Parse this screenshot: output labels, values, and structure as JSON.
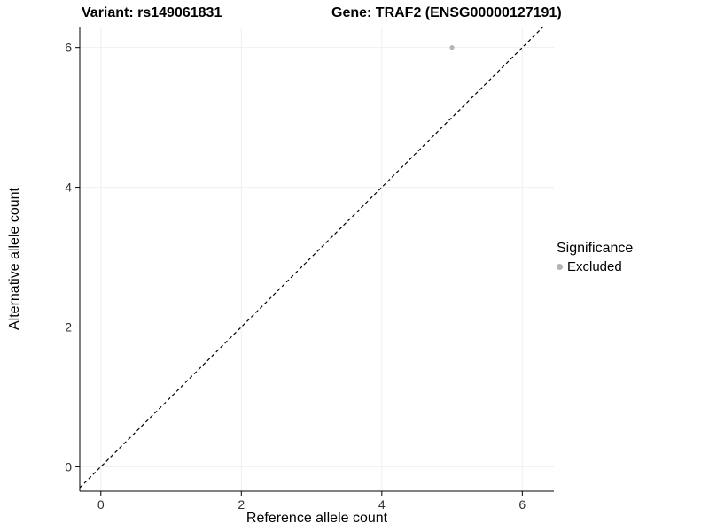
{
  "titles": {
    "left": "Variant: rs149061831",
    "right": "Gene: TRAF2 (ENSG00000127191)"
  },
  "axes": {
    "x_label": "Reference allele count",
    "y_label": "Alternative allele count"
  },
  "legend": {
    "title": "Significance",
    "items": [
      {
        "label": "Excluded",
        "color": "#b3b3b3"
      }
    ]
  },
  "chart_data": {
    "type": "scatter",
    "title_left": "Variant: rs149061831",
    "title_right": "Gene: TRAF2 (ENSG00000127191)",
    "xlabel": "Reference allele count",
    "ylabel": "Alternative allele count",
    "xlim": [
      -0.3,
      6.45
    ],
    "ylim": [
      -0.35,
      6.3
    ],
    "x_ticks": [
      0,
      2,
      4,
      6
    ],
    "y_ticks": [
      0,
      2,
      4,
      6
    ],
    "grid": true,
    "grid_color": "#efefef",
    "axis_color": "#000000",
    "reference_line": {
      "kind": "identity",
      "style": "dashed",
      "color": "#000000"
    },
    "legend_position": "right",
    "series": [
      {
        "name": "Excluded",
        "color": "#b3b3b3",
        "points": [
          {
            "x": 5,
            "y": 6
          }
        ]
      }
    ]
  }
}
